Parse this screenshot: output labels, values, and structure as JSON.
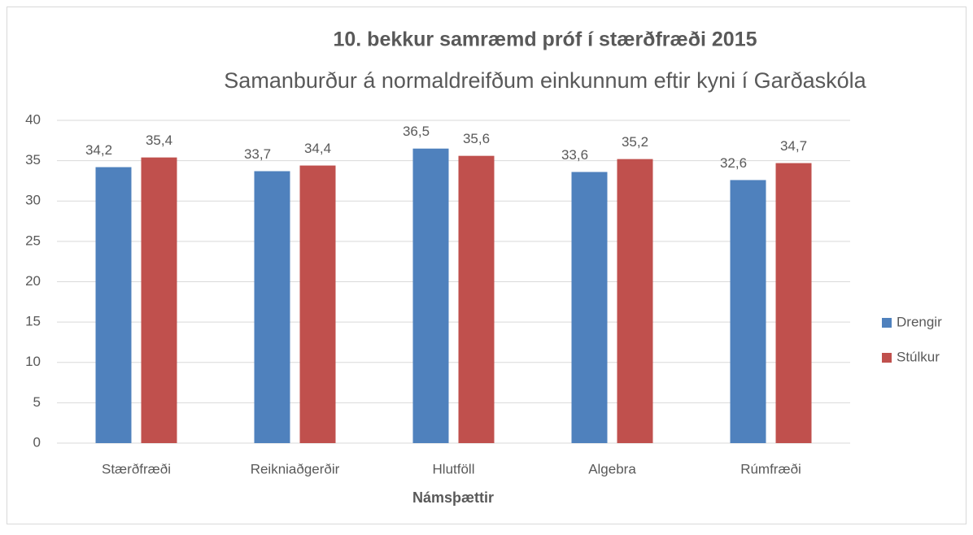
{
  "chart_data": {
    "type": "bar",
    "title": "10. bekkur samræmd próf í stærðfræði 2015",
    "subtitle": "Samanburður á normaldreifðum einkunnum eftir kyni í Garðaskóla",
    "x_label": "Námsþættir",
    "categories": [
      "Stærðfræði",
      "Reikniaðgerðir",
      "Hlutföll",
      "Algebra",
      "Rúmfræði"
    ],
    "series": [
      {
        "name": "Drengir",
        "color": "#4f81bd",
        "values": [
          34.2,
          33.7,
          36.5,
          33.6,
          32.6
        ],
        "value_labels": [
          "34,2",
          "33,7",
          "36,5",
          "33,6",
          "32,6"
        ]
      },
      {
        "name": "Stúlkur",
        "color": "#c0504d",
        "values": [
          35.4,
          34.4,
          35.6,
          35.2,
          34.7
        ],
        "value_labels": [
          "35,4",
          "34,4",
          "35,6",
          "35,2",
          "34,7"
        ]
      }
    ],
    "ylim": [
      0,
      40
    ],
    "yticks": [
      0,
      5,
      10,
      15,
      20,
      25,
      30,
      35,
      40
    ],
    "grid": true,
    "legend": "right"
  }
}
